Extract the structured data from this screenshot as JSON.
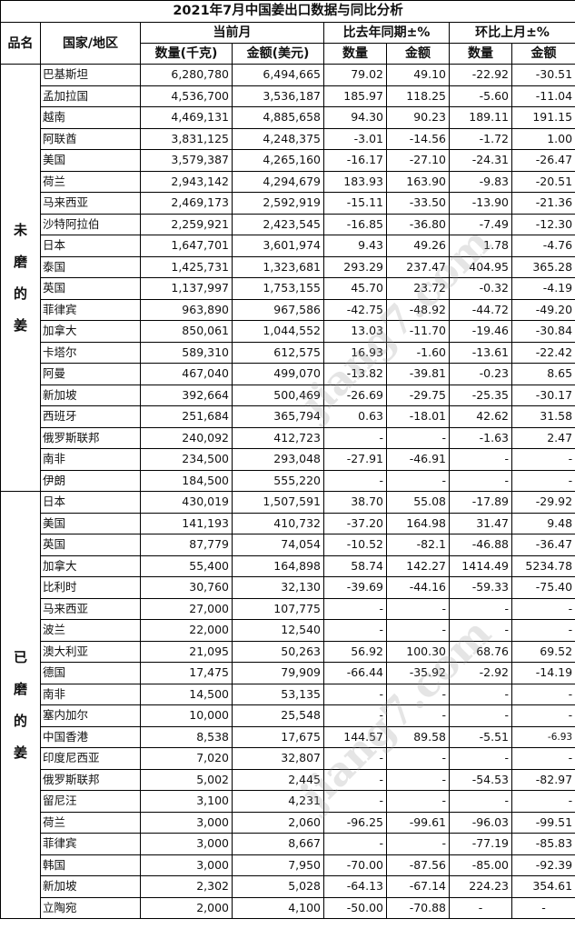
{
  "title": "2021年7月中国姜出口数据与同比分析",
  "headers": {
    "product": "品名",
    "country": "国家/地区",
    "current_month": "当前月",
    "yoy": "比去年同期±%",
    "mom": "环比上月±%",
    "qty_kg": "数量(千克)",
    "amount_usd": "金额(美元)",
    "qty": "数量",
    "amount": "金额"
  },
  "watermark": "中国姜网 www.jiang7.com",
  "groups": [
    {
      "label": [
        "未",
        "磨",
        "的",
        "姜"
      ],
      "rows": [
        [
          "巴基斯坦",
          "6,280,780",
          "6,494,665",
          "79.02",
          "49.10",
          "-22.92",
          "-30.51"
        ],
        [
          "孟加拉国",
          "4,536,700",
          "3,536,187",
          "185.97",
          "118.25",
          "-5.60",
          "-11.04"
        ],
        [
          "越南",
          "4,469,131",
          "4,885,658",
          "94.30",
          "90.23",
          "189.11",
          "191.15"
        ],
        [
          "阿联酋",
          "3,831,125",
          "4,248,375",
          "-3.01",
          "-14.56",
          "-1.72",
          "1.00"
        ],
        [
          "美国",
          "3,579,387",
          "4,265,160",
          "-16.17",
          "-27.10",
          "-24.31",
          "-26.47"
        ],
        [
          "荷兰",
          "2,943,142",
          "4,294,679",
          "183.93",
          "163.90",
          "-9.83",
          "-20.51"
        ],
        [
          "马来西亚",
          "2,469,173",
          "2,592,919",
          "-15.11",
          "-33.50",
          "-13.90",
          "-21.36"
        ],
        [
          "沙特阿拉伯",
          "2,259,921",
          "2,423,545",
          "-16.85",
          "-36.80",
          "-7.49",
          "-12.30"
        ],
        [
          "日本",
          "1,647,701",
          "3,601,974",
          "9.43",
          "49.26",
          "1.78",
          "-4.76"
        ],
        [
          "泰国",
          "1,425,731",
          "1,323,681",
          "293.29",
          "237.47",
          "404.95",
          "365.28"
        ],
        [
          "英国",
          "1,137,997",
          "1,753,155",
          "45.70",
          "23.72",
          "-0.32",
          "-4.19"
        ],
        [
          "菲律宾",
          "963,890",
          "967,586",
          "-42.75",
          "-48.92",
          "-44.72",
          "-49.20"
        ],
        [
          "加拿大",
          "850,061",
          "1,044,552",
          "13.03",
          "-11.70",
          "-19.46",
          "-30.84"
        ],
        [
          "卡塔尔",
          "589,310",
          "612,575",
          "16.93",
          "-1.60",
          "-13.61",
          "-22.42"
        ],
        [
          "阿曼",
          "467,040",
          "499,070",
          "-13.82",
          "-39.81",
          "-0.23",
          "8.65"
        ],
        [
          "新加坡",
          "392,664",
          "500,469",
          "-26.69",
          "-29.75",
          "-25.35",
          "-30.17"
        ],
        [
          "西班牙",
          "251,684",
          "365,794",
          "0.63",
          "-18.01",
          "42.62",
          "31.58"
        ],
        [
          "俄罗斯联邦",
          "240,092",
          "412,723",
          "-",
          "-",
          "-1.63",
          "2.47"
        ],
        [
          "南非",
          "234,500",
          "293,048",
          "-27.91",
          "-46.91",
          "-",
          "-"
        ],
        [
          "伊朗",
          "184,500",
          "555,220",
          "-",
          "-",
          "-",
          "-"
        ]
      ]
    },
    {
      "label": [
        "已",
        "磨",
        "的",
        "姜"
      ],
      "rows": [
        [
          "日本",
          "430,019",
          "1,507,591",
          "38.70",
          "55.08",
          "-17.89",
          "-29.92"
        ],
        [
          "美国",
          "141,193",
          "410,732",
          "-37.20",
          "164.98",
          "31.47",
          "9.48"
        ],
        [
          "英国",
          "87,779",
          "74,054",
          "-10.52",
          "-82.1",
          "-46.88",
          "-36.47"
        ],
        [
          "加拿大",
          "55,400",
          "164,898",
          "58.74",
          "142.27",
          "1414.49",
          "5234.78"
        ],
        [
          "比利时",
          "30,760",
          "32,130",
          "-39.69",
          "-44.16",
          "-59.33",
          "-75.40"
        ],
        [
          "马来西亚",
          "27,000",
          "107,775",
          "-",
          "-",
          "-",
          "-"
        ],
        [
          "波兰",
          "22,000",
          "12,540",
          "-",
          "-",
          "-",
          "-"
        ],
        [
          "澳大利亚",
          "21,095",
          "50,263",
          "56.92",
          "100.30",
          "68.76",
          "69.52"
        ],
        [
          "德国",
          "17,475",
          "79,909",
          "-66.44",
          "-35.92",
          "-2.92",
          "-14.19"
        ],
        [
          "南非",
          "14,500",
          "53,135",
          "-",
          "-",
          "-",
          "-"
        ],
        [
          "塞内加尔",
          "10,000",
          "25,548",
          "-",
          "-",
          "-",
          "-"
        ],
        [
          "中国香港",
          "8,538",
          "17,675",
          "144.57",
          "89.58",
          "-5.51",
          "-6.93"
        ],
        [
          "印度尼西亚",
          "7,020",
          "32,807",
          "-",
          "-",
          "-",
          "-"
        ],
        [
          "俄罗斯联邦",
          "5,002",
          "2,445",
          "-",
          "-",
          "-54.53",
          "-82.97"
        ],
        [
          "留尼汪",
          "3,100",
          "4,231",
          "-",
          "-",
          "-",
          "-"
        ],
        [
          "荷兰",
          "3,000",
          "2,060",
          "-96.25",
          "-99.61",
          "-96.03",
          "-99.51"
        ],
        [
          "菲律宾",
          "3,000",
          "8,667",
          "-",
          "-",
          "-77.19",
          "-85.83"
        ],
        [
          "韩国",
          "3,000",
          "7,950",
          "-70.00",
          "-87.56",
          "-85.00",
          "-92.39"
        ],
        [
          "新加坡",
          "2,302",
          "5,028",
          "-64.13",
          "-67.14",
          "224.23",
          "354.61"
        ],
        [
          "立陶宛",
          "2,000",
          "4,100",
          "-50.00",
          "-70.88",
          "-",
          "-"
        ]
      ]
    }
  ]
}
